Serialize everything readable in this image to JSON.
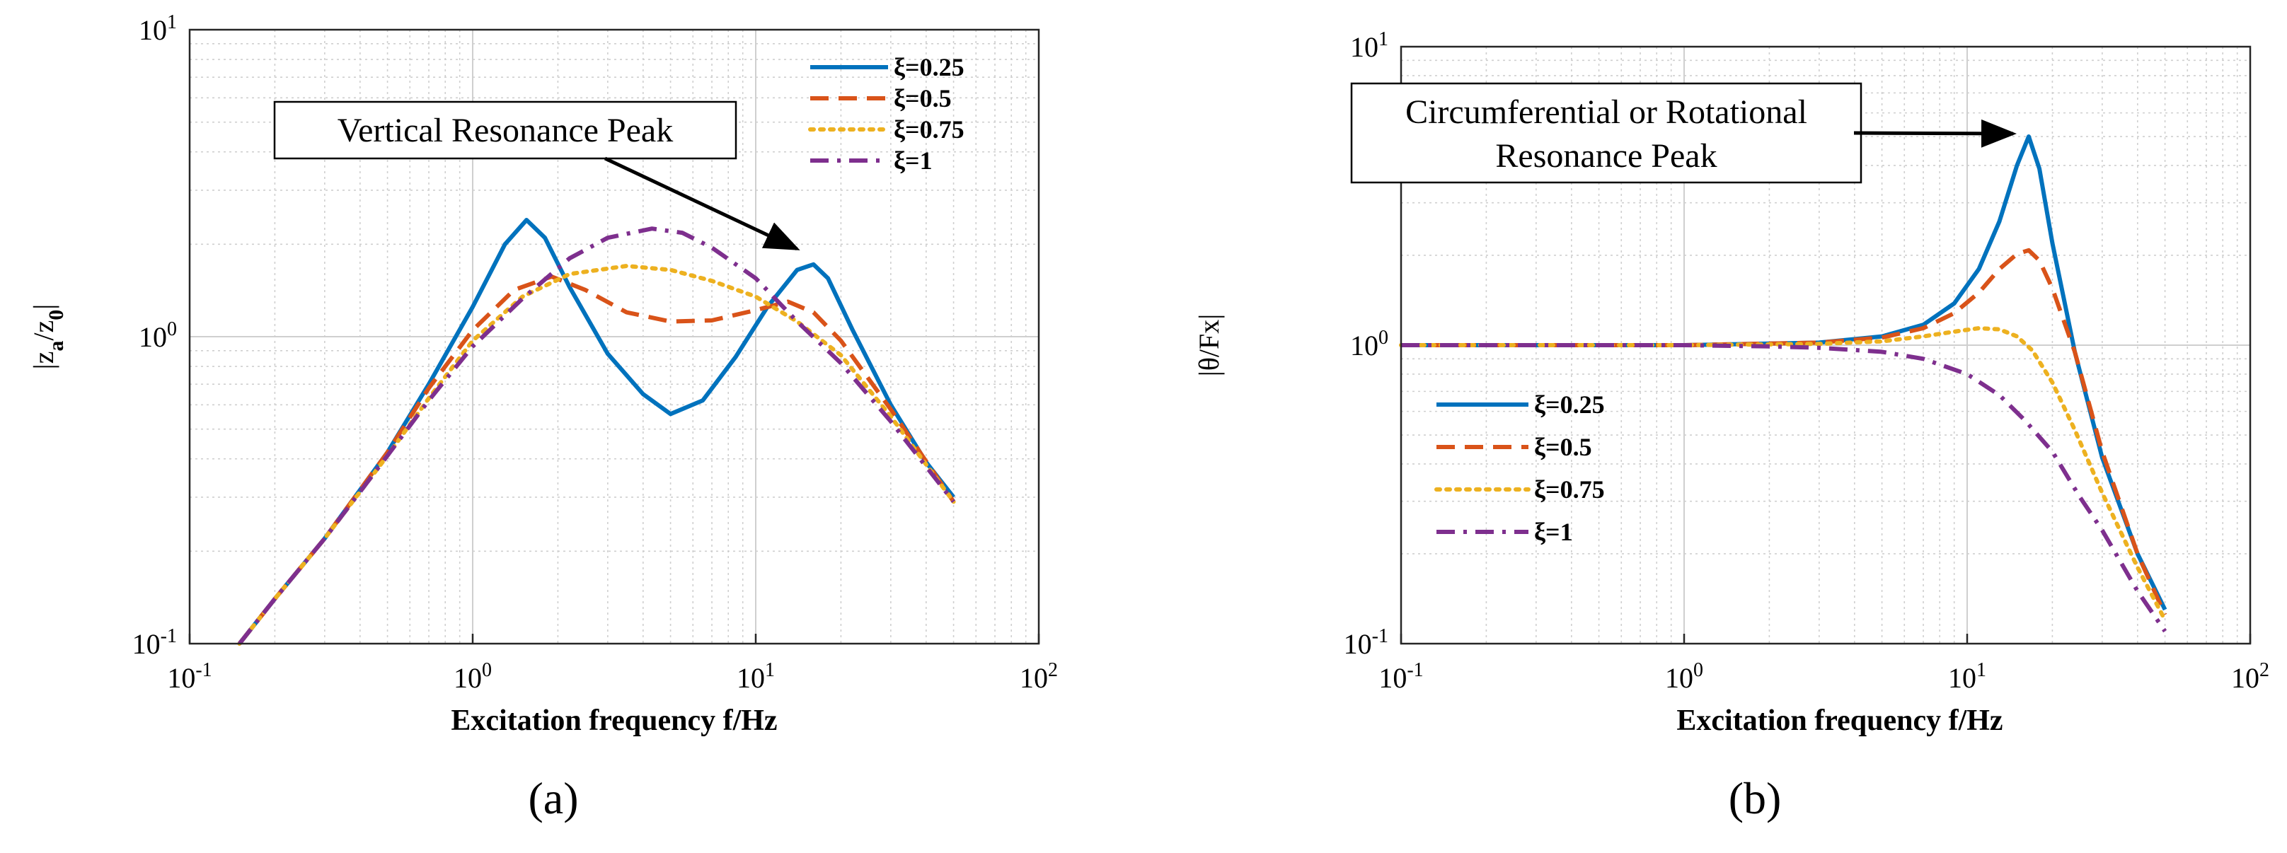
{
  "chart_data": [
    {
      "type": "line",
      "panel_label": "(a)",
      "title": "",
      "xlabel": "Excitation frequency f/Hz",
      "ylabel": "|z_a/z_0|",
      "ylabel_parts": {
        "base1": "|z",
        "sub1": "a",
        "mid": "/z",
        "sub2": "0",
        "end": "|"
      },
      "xscale": "log",
      "yscale": "log",
      "xlim": [
        0.1,
        100
      ],
      "ylim": [
        0.1,
        10
      ],
      "xticks": [
        {
          "base": "10",
          "exp": "-1"
        },
        {
          "base": "10",
          "exp": "0"
        },
        {
          "base": "10",
          "exp": "1"
        },
        {
          "base": "10",
          "exp": "2"
        }
      ],
      "yticks": [
        {
          "base": "10",
          "exp": "-1"
        },
        {
          "base": "10",
          "exp": "0"
        },
        {
          "base": "10",
          "exp": "1"
        }
      ],
      "grid": true,
      "legend_position": "top-right",
      "series": [
        {
          "name": "ξ=0.25",
          "color": "#0072BD",
          "dash": "solid",
          "x": [
            0.15,
            0.2,
            0.3,
            0.5,
            0.7,
            1.0,
            1.3,
            1.55,
            1.8,
            2.2,
            3.0,
            4.0,
            5.0,
            6.5,
            8.5,
            11,
            14,
            16,
            18,
            22,
            30,
            40,
            50
          ],
          "y": [
            0.1,
            0.14,
            0.22,
            0.42,
            0.7,
            1.25,
            2.0,
            2.4,
            2.1,
            1.45,
            0.88,
            0.65,
            0.56,
            0.62,
            0.86,
            1.25,
            1.65,
            1.72,
            1.55,
            1.05,
            0.6,
            0.39,
            0.3
          ]
        },
        {
          "name": "ξ=0.5",
          "color": "#D95319",
          "dash": "dashed",
          "x": [
            0.15,
            0.2,
            0.3,
            0.5,
            0.7,
            1.0,
            1.4,
            1.9,
            2.5,
            3.5,
            5,
            7,
            10,
            13,
            16,
            20,
            30,
            50
          ],
          "y": [
            0.1,
            0.14,
            0.22,
            0.42,
            0.68,
            1.05,
            1.42,
            1.57,
            1.42,
            1.2,
            1.12,
            1.13,
            1.22,
            1.3,
            1.2,
            0.97,
            0.58,
            0.29
          ]
        },
        {
          "name": "ξ=0.75",
          "color": "#EDB120",
          "dash": "dotted",
          "x": [
            0.15,
            0.2,
            0.3,
            0.5,
            0.7,
            1.0,
            1.5,
            2.2,
            3.5,
            5,
            7,
            10,
            14,
            20,
            30,
            50
          ],
          "y": [
            0.1,
            0.14,
            0.22,
            0.41,
            0.63,
            0.97,
            1.35,
            1.6,
            1.7,
            1.65,
            1.52,
            1.35,
            1.12,
            0.87,
            0.55,
            0.29
          ]
        },
        {
          "name": "ξ=1",
          "color": "#7E2F8E",
          "dash": "dashdot",
          "x": [
            0.15,
            0.2,
            0.3,
            0.5,
            0.7,
            1.0,
            1.5,
            2.2,
            3.0,
            4.3,
            5.5,
            7,
            10,
            14,
            20,
            30,
            50
          ],
          "y": [
            0.1,
            0.14,
            0.22,
            0.41,
            0.62,
            0.93,
            1.33,
            1.8,
            2.1,
            2.25,
            2.18,
            1.95,
            1.55,
            1.12,
            0.82,
            0.53,
            0.29
          ]
        }
      ],
      "annotations": [
        {
          "text": "Vertical Resonance Peak",
          "arrow_to": {
            "x": 15.5,
            "y": 1.72
          }
        }
      ]
    },
    {
      "type": "line",
      "panel_label": "(b)",
      "title": "",
      "xlabel": "Excitation frequency f/Hz",
      "ylabel": "|θ/Fx|",
      "xscale": "log",
      "yscale": "log",
      "xlim": [
        0.1,
        100
      ],
      "ylim": [
        0.1,
        10
      ],
      "xticks": [
        {
          "base": "10",
          "exp": "-1"
        },
        {
          "base": "10",
          "exp": "0"
        },
        {
          "base": "10",
          "exp": "1"
        },
        {
          "base": "10",
          "exp": "2"
        }
      ],
      "yticks": [
        {
          "base": "10",
          "exp": "-1"
        },
        {
          "base": "10",
          "exp": "0"
        },
        {
          "base": "10",
          "exp": "1"
        }
      ],
      "grid": true,
      "legend_position": "middle-left",
      "series": [
        {
          "name": "ξ=0.25",
          "color": "#0072BD",
          "dash": "solid",
          "x": [
            0.1,
            1.0,
            3.0,
            5.0,
            7.0,
            9.0,
            11,
            13,
            15,
            16.5,
            18,
            20,
            24,
            30,
            40,
            50
          ],
          "y": [
            1.0,
            1.0,
            1.02,
            1.07,
            1.17,
            1.38,
            1.8,
            2.6,
            4.0,
            5.0,
            3.9,
            2.2,
            0.95,
            0.42,
            0.2,
            0.13
          ]
        },
        {
          "name": "ξ=0.5",
          "color": "#D95319",
          "dash": "dashed",
          "x": [
            0.1,
            1.0,
            3.0,
            5.0,
            7.0,
            9.0,
            11,
            13,
            15,
            16.5,
            18,
            20,
            24,
            30,
            40,
            50
          ],
          "y": [
            1.0,
            1.0,
            1.02,
            1.06,
            1.14,
            1.28,
            1.5,
            1.8,
            2.02,
            2.08,
            1.92,
            1.55,
            0.95,
            0.44,
            0.2,
            0.125
          ]
        },
        {
          "name": "ξ=0.75",
          "color": "#EDB120",
          "dash": "dotted",
          "x": [
            0.1,
            1.0,
            3.0,
            5.0,
            7.0,
            9.0,
            11,
            13,
            15,
            17,
            20,
            24,
            30,
            40,
            50
          ],
          "y": [
            1.0,
            1.0,
            1.01,
            1.03,
            1.07,
            1.11,
            1.14,
            1.13,
            1.07,
            0.96,
            0.75,
            0.52,
            0.32,
            0.18,
            0.12
          ]
        },
        {
          "name": "ξ=1",
          "color": "#7E2F8E",
          "dash": "dashdot",
          "x": [
            0.1,
            1.0,
            2.0,
            3.0,
            5.0,
            7.0,
            10,
            13,
            16,
            20,
            25,
            30,
            40,
            50
          ],
          "y": [
            1.0,
            1.0,
            0.99,
            0.98,
            0.95,
            0.9,
            0.8,
            0.68,
            0.56,
            0.44,
            0.31,
            0.24,
            0.15,
            0.11
          ]
        }
      ],
      "annotations": [
        {
          "text": "Circumferential or Rotational Resonance Peak",
          "lines": [
            "Circumferential or Rotational",
            "Resonance Peak"
          ],
          "arrow_to": {
            "x": 16.5,
            "y": 5.0
          }
        }
      ]
    }
  ]
}
